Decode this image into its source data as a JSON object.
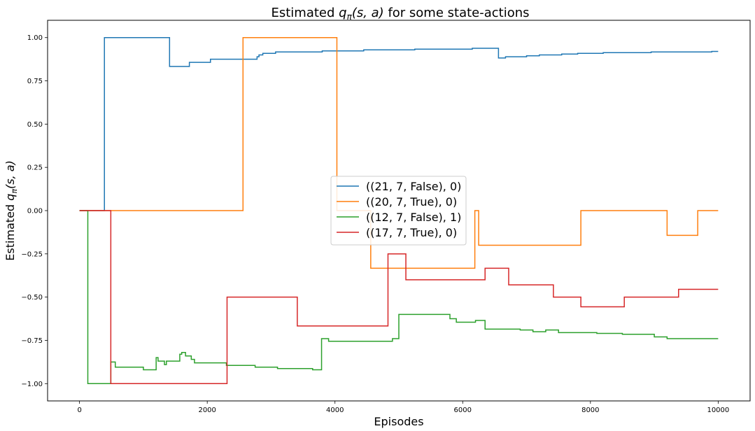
{
  "chart_data": {
    "type": "line",
    "title_prefix": "Estimated ",
    "title_q": "q",
    "title_sub": "π",
    "title_args": "(s, a)",
    "title_suffix": " for some state-actions",
    "xlabel": "Episodes",
    "ylabel_prefix": "Estimated ",
    "ylabel_q": "q",
    "ylabel_sub": "π",
    "ylabel_args": "(s, a)",
    "xlim": [
      -500,
      10500
    ],
    "ylim": [
      -1.1,
      1.1
    ],
    "xticks": [
      0,
      2000,
      4000,
      6000,
      8000,
      10000
    ],
    "xtick_labels": [
      "0",
      "2000",
      "4000",
      "6000",
      "8000",
      "10000"
    ],
    "yticks": [
      -1.0,
      -0.75,
      -0.5,
      -0.25,
      0.0,
      0.25,
      0.5,
      0.75,
      1.0
    ],
    "ytick_labels": [
      "−1.00",
      "−0.75",
      "−0.50",
      "−0.25",
      "0.00",
      "0.25",
      "0.50",
      "0.75",
      "1.00"
    ],
    "grid": false,
    "legend_position": "center",
    "step": true,
    "series": [
      {
        "name": "((21, 7, False), 0)",
        "color": "#1f77b4",
        "points": [
          [
            0,
            0
          ],
          [
            390,
            0
          ],
          [
            390,
            1.0
          ],
          [
            1410,
            1.0
          ],
          [
            1410,
            0.833
          ],
          [
            1720,
            0.833
          ],
          [
            1720,
            0.857
          ],
          [
            2050,
            0.857
          ],
          [
            2050,
            0.875
          ],
          [
            2780,
            0.875
          ],
          [
            2780,
            0.889
          ],
          [
            2810,
            0.889
          ],
          [
            2810,
            0.9
          ],
          [
            2870,
            0.9
          ],
          [
            2870,
            0.909
          ],
          [
            3070,
            0.909
          ],
          [
            3070,
            0.917
          ],
          [
            3800,
            0.917
          ],
          [
            3800,
            0.923
          ],
          [
            4450,
            0.923
          ],
          [
            4450,
            0.929
          ],
          [
            5250,
            0.929
          ],
          [
            5250,
            0.933
          ],
          [
            6150,
            0.933
          ],
          [
            6150,
            0.938
          ],
          [
            6560,
            0.938
          ],
          [
            6560,
            0.882
          ],
          [
            6670,
            0.882
          ],
          [
            6670,
            0.889
          ],
          [
            7000,
            0.889
          ],
          [
            7000,
            0.895
          ],
          [
            7200,
            0.895
          ],
          [
            7200,
            0.9
          ],
          [
            7550,
            0.9
          ],
          [
            7550,
            0.905
          ],
          [
            7800,
            0.905
          ],
          [
            7800,
            0.909
          ],
          [
            8200,
            0.909
          ],
          [
            8200,
            0.913
          ],
          [
            8950,
            0.913
          ],
          [
            8950,
            0.917
          ],
          [
            9900,
            0.917
          ],
          [
            9900,
            0.92
          ],
          [
            10000,
            0.92
          ]
        ]
      },
      {
        "name": "((20, 7, True), 0)",
        "color": "#ff7f0e",
        "points": [
          [
            0,
            0
          ],
          [
            2560,
            0
          ],
          [
            2560,
            1.0
          ],
          [
            4030,
            1.0
          ],
          [
            4030,
            0.0
          ],
          [
            4560,
            0.0
          ],
          [
            4560,
            -0.333
          ],
          [
            6190,
            -0.333
          ],
          [
            6190,
            0.0
          ],
          [
            6250,
            0.0
          ],
          [
            6250,
            -0.2
          ],
          [
            7850,
            -0.2
          ],
          [
            7850,
            0.0
          ],
          [
            9200,
            0.0
          ],
          [
            9200,
            -0.143
          ],
          [
            9680,
            -0.143
          ],
          [
            9680,
            0.0
          ],
          [
            10000,
            0.0
          ]
        ]
      },
      {
        "name": "((12, 7, False), 1)",
        "color": "#2ca02c",
        "points": [
          [
            0,
            0
          ],
          [
            130,
            0
          ],
          [
            130,
            -1.0
          ],
          [
            490,
            -1.0
          ],
          [
            490,
            -0.875
          ],
          [
            560,
            -0.875
          ],
          [
            560,
            -0.905
          ],
          [
            1000,
            -0.905
          ],
          [
            1000,
            -0.92
          ],
          [
            1200,
            -0.92
          ],
          [
            1200,
            -0.85
          ],
          [
            1230,
            -0.85
          ],
          [
            1230,
            -0.87
          ],
          [
            1330,
            -0.87
          ],
          [
            1330,
            -0.89
          ],
          [
            1360,
            -0.89
          ],
          [
            1360,
            -0.87
          ],
          [
            1570,
            -0.87
          ],
          [
            1570,
            -0.83
          ],
          [
            1600,
            -0.83
          ],
          [
            1600,
            -0.82
          ],
          [
            1660,
            -0.82
          ],
          [
            1660,
            -0.84
          ],
          [
            1750,
            -0.84
          ],
          [
            1750,
            -0.86
          ],
          [
            1800,
            -0.86
          ],
          [
            1800,
            -0.88
          ],
          [
            2300,
            -0.88
          ],
          [
            2300,
            -0.895
          ],
          [
            2750,
            -0.895
          ],
          [
            2750,
            -0.905
          ],
          [
            3100,
            -0.905
          ],
          [
            3100,
            -0.913
          ],
          [
            3650,
            -0.913
          ],
          [
            3650,
            -0.92
          ],
          [
            3790,
            -0.92
          ],
          [
            3790,
            -0.74
          ],
          [
            3900,
            -0.74
          ],
          [
            3900,
            -0.755
          ],
          [
            4900,
            -0.755
          ],
          [
            4900,
            -0.74
          ],
          [
            5000,
            -0.74
          ],
          [
            5000,
            -0.6
          ],
          [
            5800,
            -0.6
          ],
          [
            5800,
            -0.625
          ],
          [
            5900,
            -0.625
          ],
          [
            5900,
            -0.645
          ],
          [
            6200,
            -0.645
          ],
          [
            6200,
            -0.635
          ],
          [
            6350,
            -0.635
          ],
          [
            6350,
            -0.685
          ],
          [
            6900,
            -0.685
          ],
          [
            6900,
            -0.69
          ],
          [
            7100,
            -0.69
          ],
          [
            7100,
            -0.7
          ],
          [
            7300,
            -0.7
          ],
          [
            7300,
            -0.69
          ],
          [
            7500,
            -0.69
          ],
          [
            7500,
            -0.705
          ],
          [
            8100,
            -0.705
          ],
          [
            8100,
            -0.71
          ],
          [
            8500,
            -0.71
          ],
          [
            8500,
            -0.715
          ],
          [
            9000,
            -0.715
          ],
          [
            9000,
            -0.73
          ],
          [
            9200,
            -0.73
          ],
          [
            9200,
            -0.74
          ],
          [
            10000,
            -0.74
          ]
        ]
      },
      {
        "name": "((17, 7, True), 0)",
        "color": "#d62728",
        "points": [
          [
            0,
            0
          ],
          [
            490,
            0
          ],
          [
            490,
            -1.0
          ],
          [
            2310,
            -1.0
          ],
          [
            2310,
            -0.5
          ],
          [
            3410,
            -0.5
          ],
          [
            3410,
            -0.667
          ],
          [
            4830,
            -0.667
          ],
          [
            4830,
            -0.25
          ],
          [
            5110,
            -0.25
          ],
          [
            5110,
            -0.4
          ],
          [
            6350,
            -0.4
          ],
          [
            6350,
            -0.333
          ],
          [
            6720,
            -0.333
          ],
          [
            6720,
            -0.429
          ],
          [
            7420,
            -0.429
          ],
          [
            7420,
            -0.5
          ],
          [
            7850,
            -0.5
          ],
          [
            7850,
            -0.556
          ],
          [
            8530,
            -0.556
          ],
          [
            8530,
            -0.5
          ],
          [
            9380,
            -0.5
          ],
          [
            9380,
            -0.455
          ],
          [
            10000,
            -0.455
          ]
        ]
      }
    ]
  }
}
